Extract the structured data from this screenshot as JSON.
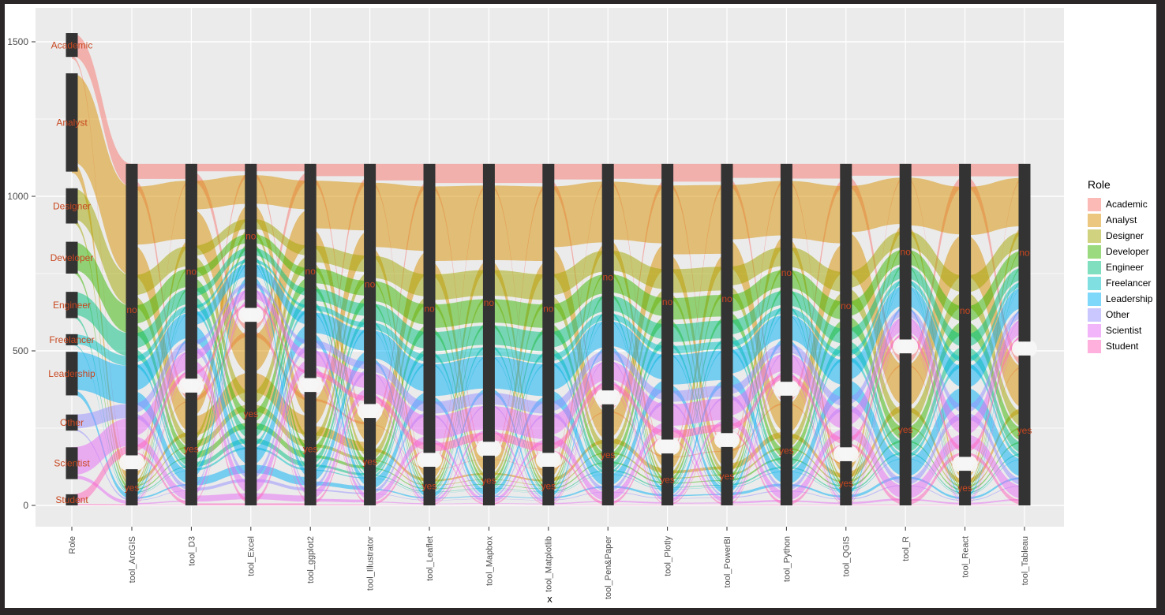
{
  "figure": {
    "outer_bg": "#2B2728",
    "figure_bg": "#FFFFFF",
    "panel_bg": "#EBEBEB",
    "grid_color": "#FFFFFF",
    "bar_color": "#333333",
    "stratum_label_color": "#C8471F",
    "axis_text_color": "#4D4D4D",
    "tick_color": "#333333",
    "gap_blob_color": "#F7F7F7",
    "flow_opacity": 0.5
  },
  "x_axis": {
    "title": "x",
    "labels": [
      "Role",
      "tool_ArcGIS",
      "tool_D3",
      "tool_Excel",
      "tool_ggplot2",
      "tool_Illustrator",
      "tool_Leaflet",
      "tool_Mapbox",
      "tool_Matplotlib",
      "tool_Pen&Paper",
      "tool_Plotly",
      "tool_PowerBI",
      "tool_Python",
      "tool_QGIS",
      "tool_R",
      "tool_React",
      "tool_Tableau"
    ]
  },
  "y_axis": {
    "ticks": [
      0,
      500,
      1000,
      1500
    ],
    "minor_ticks": [
      250,
      750,
      1250
    ]
  },
  "legend": {
    "title": "Role",
    "entries": [
      {
        "name": "Academic",
        "color": "#F8766D"
      },
      {
        "name": "Analyst",
        "color": "#D89000"
      },
      {
        "name": "Designer",
        "color": "#A3A500"
      },
      {
        "name": "Developer",
        "color": "#39B600"
      },
      {
        "name": "Engineer",
        "color": "#00BF7D"
      },
      {
        "name": "Freelancer",
        "color": "#00BFC4"
      },
      {
        "name": "Leadership",
        "color": "#00B0F6"
      },
      {
        "name": "Other",
        "color": "#9590FF"
      },
      {
        "name": "Scientist",
        "color": "#E76BF3"
      },
      {
        "name": "Student",
        "color": "#FF62BC"
      }
    ]
  },
  "chart_data": {
    "type": "alluvial",
    "title": "",
    "xlabel": "x",
    "ylabel": "",
    "ylim": [
      0,
      1549
    ],
    "grid": true,
    "legend_position": "right",
    "stratum_labels": [
      "no",
      "yes"
    ],
    "tool_axis_total": 1105,
    "stratum_gap": 45,
    "roles": [
      {
        "name": "Academic",
        "color": "#F8766D",
        "count": 83,
        "stratum": [
          1451,
          1528
        ]
      },
      {
        "name": "Analyst",
        "color": "#D89000",
        "count": 322,
        "stratum": [
          1080,
          1398
        ]
      },
      {
        "name": "Designer",
        "color": "#A3A500",
        "count": 111,
        "stratum": [
          912,
          1026
        ]
      },
      {
        "name": "Developer",
        "color": "#39B600",
        "count": 101,
        "stratum": [
          750,
          853
        ]
      },
      {
        "name": "Engineer",
        "color": "#00BF7D",
        "count": 83,
        "stratum": [
          606,
          691
        ]
      },
      {
        "name": "Freelancer",
        "color": "#00BFC4",
        "count": 35,
        "stratum": [
          518,
          554
        ]
      },
      {
        "name": "Leadership",
        "color": "#00B0F6",
        "count": 138,
        "stratum": [
          356,
          497
        ]
      },
      {
        "name": "Other",
        "color": "#9590FF",
        "count": 51,
        "stratum": [
          242,
          294
        ]
      },
      {
        "name": "Scientist",
        "color": "#E76BF3",
        "count": 101,
        "stratum": [
          85,
          188
        ]
      },
      {
        "name": "Student",
        "color": "#FF62BC",
        "count": 35,
        "stratum": [
          0,
          36
        ]
      }
    ],
    "tools": [
      {
        "name": "tool_ArcGIS",
        "yes": 117,
        "no": 943
      },
      {
        "name": "tool_D3",
        "yes": 365,
        "no": 695
      },
      {
        "name": "tool_Excel",
        "yes": 594,
        "no": 466
      },
      {
        "name": "tool_ggplot2",
        "yes": 367,
        "no": 693
      },
      {
        "name": "tool_Illustrator",
        "yes": 283,
        "no": 777
      },
      {
        "name": "tool_Leaflet",
        "yes": 125,
        "no": 935
      },
      {
        "name": "tool_Mapbox",
        "yes": 161,
        "no": 899
      },
      {
        "name": "tool_Matplotlib",
        "yes": 125,
        "no": 935
      },
      {
        "name": "tool_Pen&Paper",
        "yes": 327,
        "no": 733
      },
      {
        "name": "tool_Plotly",
        "yes": 168,
        "no": 892
      },
      {
        "name": "tool_PowerBI",
        "yes": 189,
        "no": 871
      },
      {
        "name": "tool_Python",
        "yes": 355,
        "no": 705
      },
      {
        "name": "tool_QGIS",
        "yes": 143,
        "no": 917
      },
      {
        "name": "tool_R",
        "yes": 492,
        "no": 568
      },
      {
        "name": "tool_React",
        "yes": 112,
        "no": 948
      },
      {
        "name": "tool_Tableau",
        "yes": 485,
        "no": 575
      }
    ]
  }
}
